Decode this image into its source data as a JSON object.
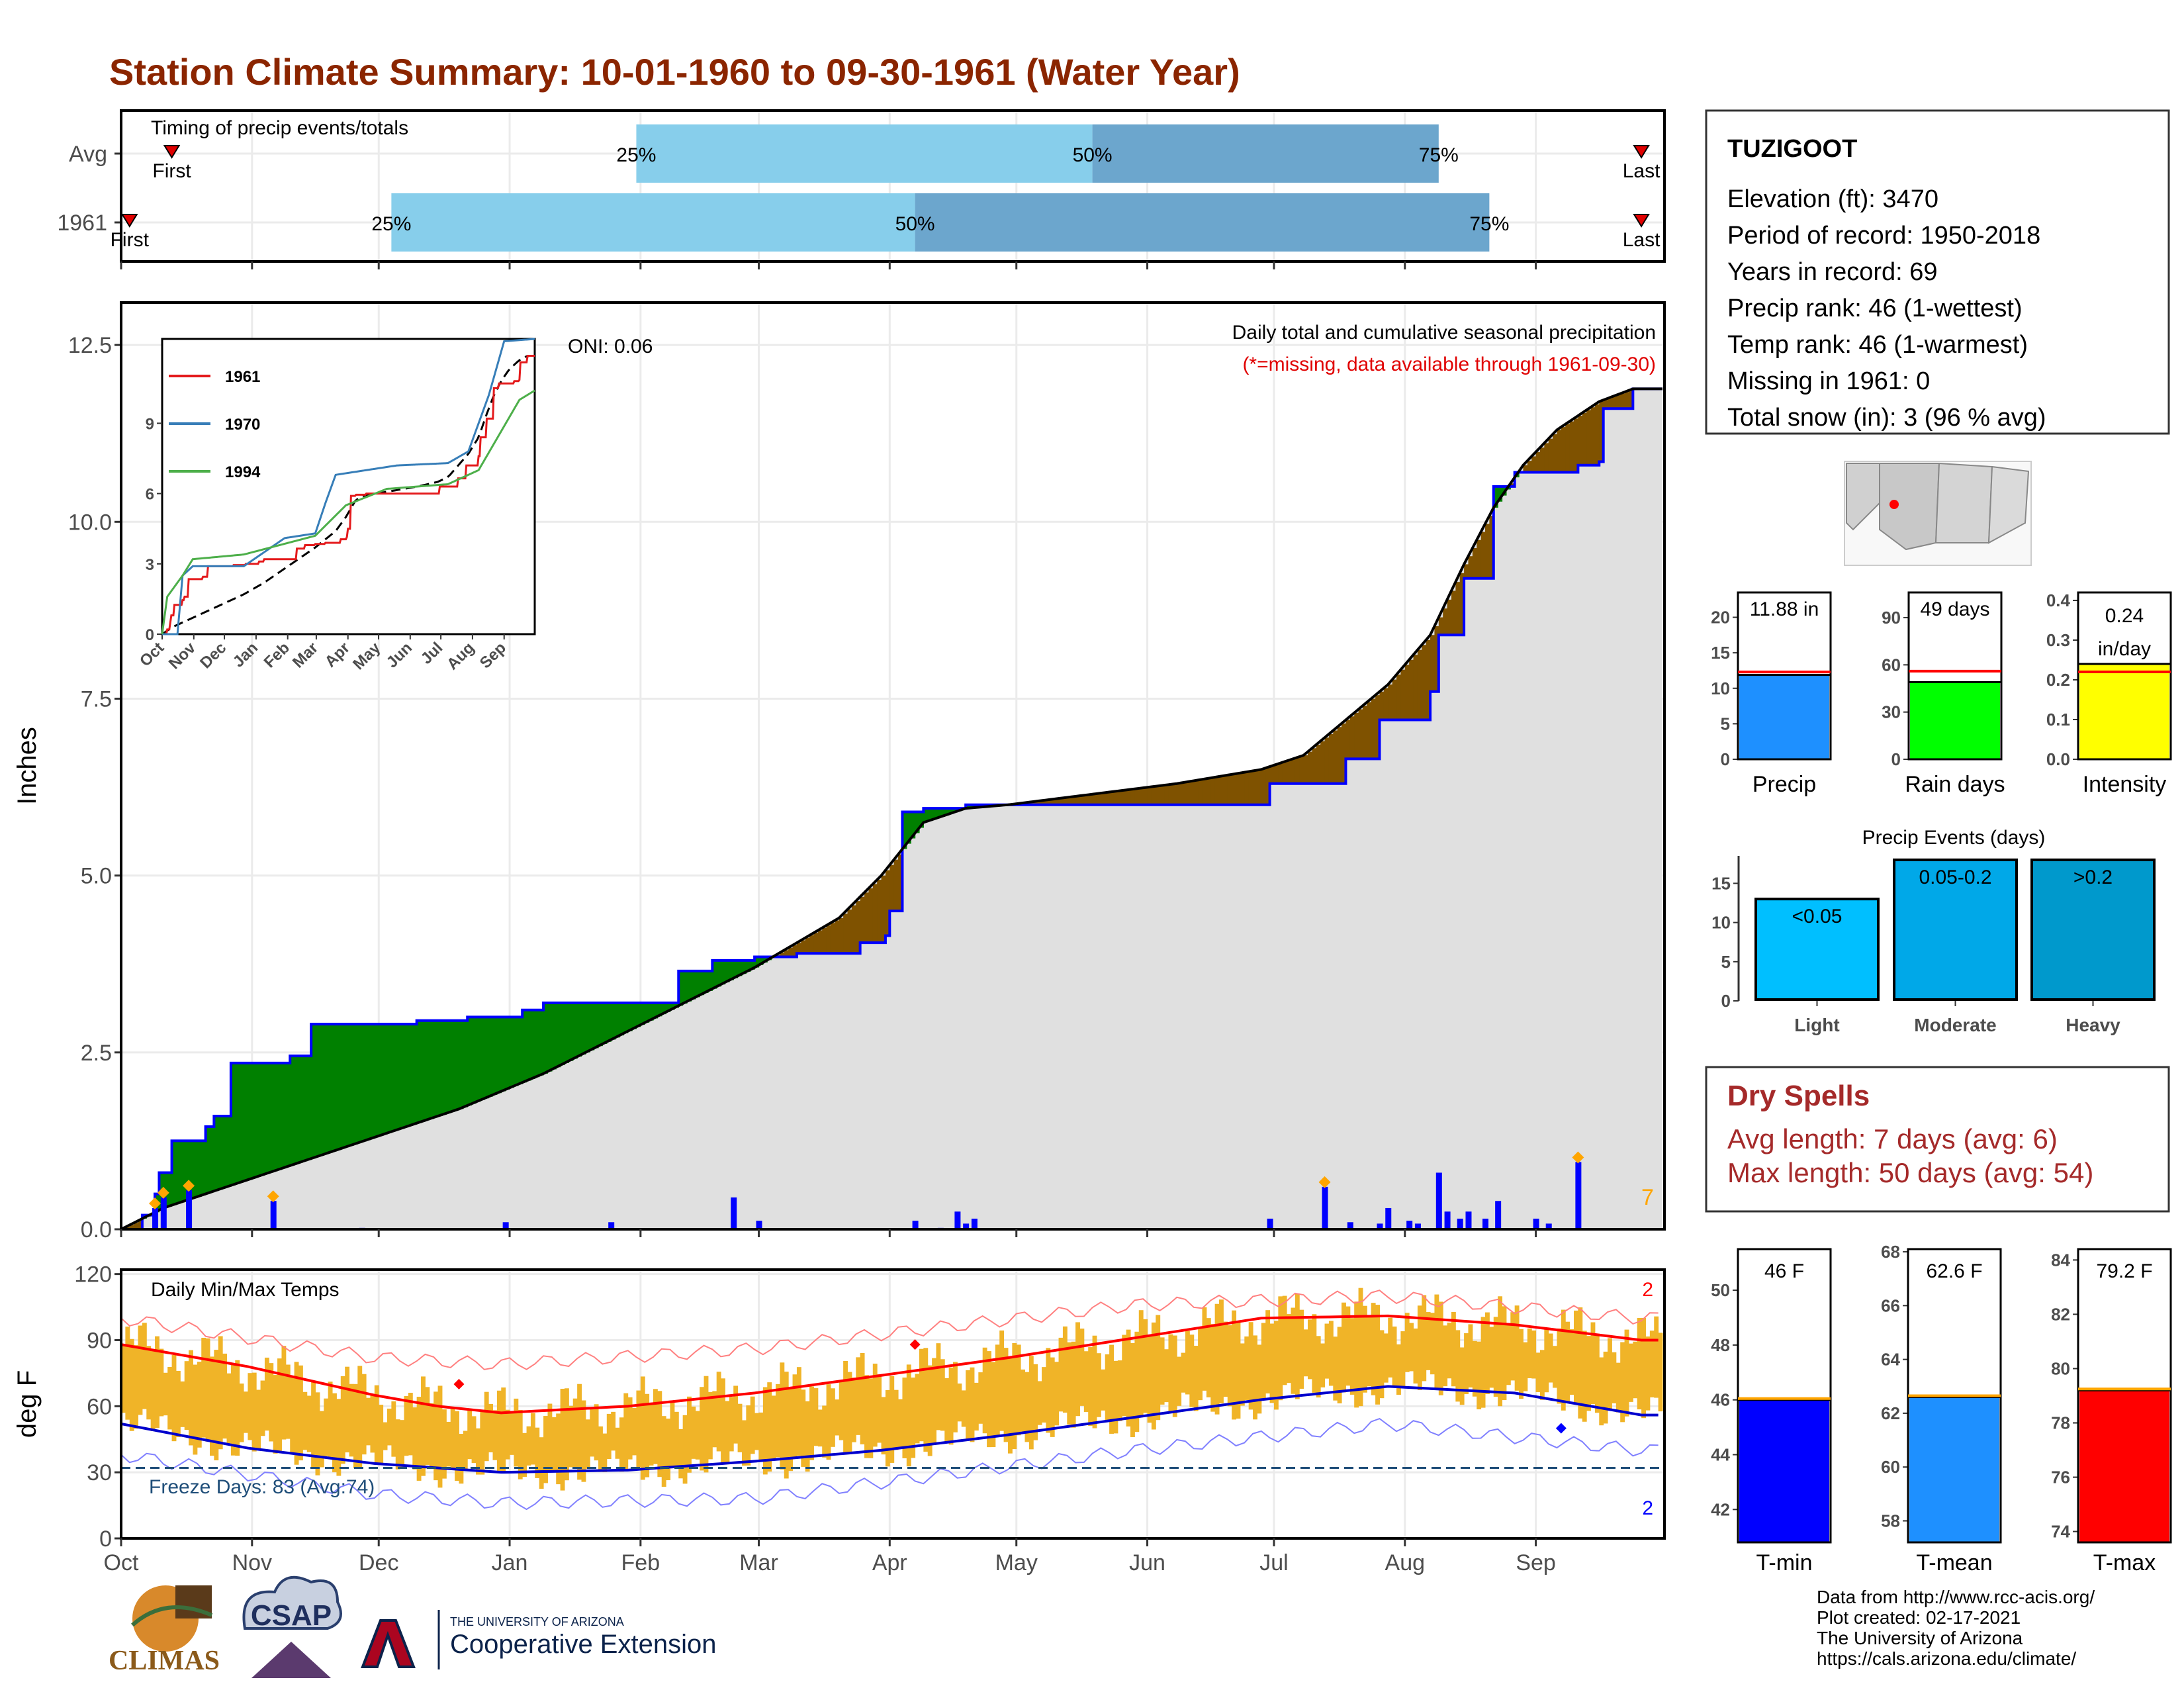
{
  "title": "Station Climate Summary: 10-01-1960 to 09-30-1961 (Water Year)",
  "timing": {
    "label": "Timing of precip events/totals",
    "rows": [
      {
        "name": "Avg",
        "first_label": "First",
        "last_label": "Last",
        "q25": "25%",
        "q50": "50%",
        "q75": "75%",
        "q25_day": 122,
        "q50_day": 230,
        "q75_day": 312,
        "first_day": 12,
        "last_day": 360
      },
      {
        "name": "1961",
        "first_label": "First",
        "last_label": "Last",
        "q25": "25%",
        "q50": "50%",
        "q75": "75%",
        "q25_day": 64,
        "q50_day": 188,
        "q75_day": 324,
        "first_day": 2,
        "last_day": 360
      }
    ]
  },
  "main_panel": {
    "ylabel": "Inches",
    "note1": "Daily total and cumulative seasonal precipitation",
    "note2": "(*=missing, data available through 1961-09-30)",
    "oni": "ONI: 0.06",
    "count_label": "7",
    "yticks": [
      "0.0",
      "2.5",
      "5.0",
      "7.5",
      "10.0",
      "12.5"
    ],
    "ylim": [
      0,
      13.1
    ],
    "colors": {
      "above": "#008000",
      "below": "#7f5200",
      "avg_fill": "#e0e0e0",
      "line": "#0000ff"
    }
  },
  "inset": {
    "yticks": [
      "0",
      "3",
      "6",
      "9"
    ],
    "xticks": [
      "Oct",
      "Nov",
      "Dec",
      "Jan",
      "Feb",
      "Mar",
      "Apr",
      "May",
      "Jun",
      "Jul",
      "Aug",
      "Sep"
    ],
    "legend": [
      {
        "name": "1961",
        "color": "#e41a1c"
      },
      {
        "name": "1970",
        "color": "#377eb8"
      },
      {
        "name": "1994",
        "color": "#4daf4a"
      }
    ]
  },
  "temp_panel": {
    "ylabel": "deg F",
    "label": "Daily Min/Max Temps",
    "freeze": "Freeze Days: 83 (Avg:74)",
    "max_count": "2",
    "min_count": "2",
    "yticks": [
      "0",
      "30",
      "60",
      "90",
      "120"
    ],
    "ylim": [
      0,
      122
    ]
  },
  "months": [
    "Oct",
    "Nov",
    "Dec",
    "Jan",
    "Feb",
    "Mar",
    "Apr",
    "May",
    "Jun",
    "Jul",
    "Aug",
    "Sep"
  ],
  "station": {
    "name": "TUZIGOOT",
    "lines": [
      "Elevation (ft): 3470",
      "Period of record: 1950-2018",
      "Years in record: 69",
      "Precip rank: 46 (1-wettest)",
      "Temp rank: 46 (1-warmest)",
      "Missing in 1961: 0",
      "Total snow (in): 3 (96 % avg)"
    ]
  },
  "summary_bars": [
    {
      "label": "Precip",
      "value_label": "11.88 in",
      "value": 11.88,
      "avg": 12.3,
      "ymax": 23.5,
      "yticks": [
        "0",
        "5",
        "10",
        "15",
        "20"
      ],
      "tickvals": [
        0,
        5,
        10,
        15,
        20
      ],
      "color": "#1e90ff"
    },
    {
      "label": "Rain days",
      "value_label": "49 days",
      "value": 49,
      "avg": 56,
      "ymax": 106,
      "yticks": [
        "0",
        "30",
        "60",
        "90"
      ],
      "tickvals": [
        0,
        30,
        60,
        90
      ],
      "color": "#00ff00"
    },
    {
      "label": "Intensity",
      "value_label": "0.24 in/day",
      "value": 0.24,
      "avg": 0.22,
      "ymax": 0.42,
      "yticks": [
        "0.0",
        "0.1",
        "0.2",
        "0.3",
        "0.4"
      ],
      "tickvals": [
        0,
        0.1,
        0.2,
        0.3,
        0.4
      ],
      "color": "#ffff00"
    }
  ],
  "precip_events": {
    "title": "Precip Events (days)",
    "yticks": [
      "0",
      "5",
      "10",
      "15"
    ],
    "tickvals": [
      0,
      5,
      10,
      15
    ],
    "ymax": 18.5,
    "bars": [
      {
        "label": "Light",
        "value_label": "<0.05",
        "value": 13,
        "color": "#00bfff"
      },
      {
        "label": "Moderate",
        "value_label": "0.05-0.2",
        "value": 18,
        "color": "#00a8e8"
      },
      {
        "label": "Heavy",
        "value_label": ">0.2",
        "value": 18,
        "color": "#0099cc"
      }
    ]
  },
  "dry_spells": {
    "title": "Dry Spells",
    "lines": [
      "Avg length: 7 days (avg: 6)",
      "Max length: 50 days (avg: 54)"
    ]
  },
  "temp_bars": [
    {
      "label": "T-min",
      "value_label": "46 F",
      "value": 46,
      "ymin": 40.8,
      "ymax": 51.5,
      "yticks": [
        "42",
        "44",
        "46",
        "48",
        "50"
      ],
      "tickvals": [
        42,
        44,
        46,
        48,
        50
      ],
      "color": "#0000ff"
    },
    {
      "label": "T-mean",
      "value_label": "62.6 F",
      "value": 62.6,
      "ymin": 57.2,
      "ymax": 68.1,
      "yticks": [
        "58",
        "60",
        "62",
        "64",
        "66",
        "68"
      ],
      "tickvals": [
        58,
        60,
        62,
        64,
        66,
        68
      ],
      "color": "#1e90ff"
    },
    {
      "label": "T-max",
      "value_label": "79.2 F",
      "value": 79.2,
      "ymin": 73.6,
      "ymax": 84.4,
      "yticks": [
        "74",
        "76",
        "78",
        "80",
        "82",
        "84"
      ],
      "tickvals": [
        74,
        76,
        78,
        80,
        82,
        84
      ],
      "color": "#ff0000"
    }
  ],
  "credits": [
    "Data from http://www.rcc-acis.org/",
    "Plot created: 02-17-2021",
    "The University of Arizona",
    "https://cals.arizona.edu/climate/"
  ],
  "logos": {
    "climas": "CLIMAS",
    "csap": "CSAP",
    "ua_small": "THE UNIVERSITY OF ARIZONA",
    "coop": "Cooperative Extension"
  },
  "chart_data": [
    {
      "type": "area",
      "title": "Daily total and cumulative seasonal precipitation",
      "ylabel": "Inches",
      "x": [
        "Oct",
        "Nov",
        "Dec",
        "Jan",
        "Feb",
        "Mar",
        "Apr",
        "May",
        "Jun",
        "Jul",
        "Aug",
        "Sep"
      ],
      "ylim": [
        0,
        13.1
      ],
      "series": [
        {
          "name": "1961",
          "values_by_day": [
            [
              0,
              0
            ],
            [
              5,
              0.2
            ],
            [
              8,
              0.5
            ],
            [
              9,
              0.8
            ],
            [
              12,
              1.25
            ],
            [
              20,
              1.45
            ],
            [
              22,
              1.6
            ],
            [
              26,
              2.35
            ],
            [
              37,
              2.35
            ],
            [
              40,
              2.45
            ],
            [
              45,
              2.9
            ],
            [
              62,
              2.9
            ],
            [
              70,
              2.95
            ],
            [
              82,
              3.0
            ],
            [
              95,
              3.1
            ],
            [
              100,
              3.2
            ],
            [
              120,
              3.2
            ],
            [
              130,
              3.2
            ],
            [
              132,
              3.65
            ],
            [
              140,
              3.8
            ],
            [
              150,
              3.85
            ],
            [
              160,
              3.9
            ],
            [
              170,
              3.9
            ],
            [
              175,
              4.05
            ],
            [
              181,
              4.15
            ],
            [
              182,
              4.5
            ],
            [
              185,
              5.9
            ],
            [
              190,
              5.95
            ],
            [
              200,
              6.0
            ],
            [
              225,
              6.0
            ],
            [
              270,
              6.0
            ],
            [
              272,
              6.3
            ],
            [
              285,
              6.3
            ],
            [
              290,
              6.65
            ],
            [
              298,
              7.2
            ],
            [
              310,
              7.6
            ],
            [
              312,
              8.4
            ],
            [
              318,
              9.2
            ],
            [
              325,
              10.5
            ],
            [
              330,
              10.7
            ],
            [
              345,
              10.8
            ],
            [
              350,
              10.85
            ],
            [
              351,
              11.6
            ],
            [
              358,
              11.88
            ]
          ]
        },
        {
          "name": "Avg",
          "values_by_day": [
            [
              0,
              0
            ],
            [
              10,
              0.3
            ],
            [
              20,
              0.5
            ],
            [
              40,
              0.9
            ],
            [
              60,
              1.3
            ],
            [
              80,
              1.7
            ],
            [
              100,
              2.2
            ],
            [
              110,
              2.5
            ],
            [
              120,
              2.8
            ],
            [
              130,
              3.1
            ],
            [
              140,
              3.4
            ],
            [
              150,
              3.7
            ],
            [
              160,
              4.05
            ],
            [
              170,
              4.4
            ],
            [
              180,
              5.0
            ],
            [
              190,
              5.75
            ],
            [
              200,
              5.95
            ],
            [
              210,
              6.0
            ],
            [
              230,
              6.15
            ],
            [
              250,
              6.3
            ],
            [
              270,
              6.5
            ],
            [
              280,
              6.7
            ],
            [
              290,
              7.2
            ],
            [
              300,
              7.7
            ],
            [
              310,
              8.4
            ],
            [
              318,
              9.4
            ],
            [
              325,
              10.2
            ],
            [
              332,
              10.8
            ],
            [
              340,
              11.3
            ],
            [
              350,
              11.7
            ],
            [
              358,
              11.88
            ]
          ]
        }
      ],
      "daily_precip_by_day": [
        [
          8,
          0.3
        ],
        [
          10,
          0.45
        ],
        [
          16,
          0.55
        ],
        [
          36,
          0.4
        ],
        [
          57,
          0.02
        ],
        [
          91,
          0.1
        ],
        [
          116,
          0.1
        ],
        [
          145,
          0.45
        ],
        [
          151,
          0.12
        ],
        [
          188,
          0.12
        ],
        [
          194,
          0.02
        ],
        [
          198,
          0.25
        ],
        [
          200,
          0.08
        ],
        [
          202,
          0.15
        ],
        [
          272,
          0.15
        ],
        [
          285,
          0.6
        ],
        [
          291,
          0.1
        ],
        [
          298,
          0.08
        ],
        [
          300,
          0.3
        ],
        [
          305,
          0.12
        ],
        [
          307,
          0.08
        ],
        [
          312,
          0.8
        ],
        [
          314,
          0.25
        ],
        [
          317,
          0.15
        ],
        [
          319,
          0.25
        ],
        [
          323,
          0.15
        ],
        [
          326,
          0.4
        ],
        [
          335,
          0.15
        ],
        [
          338,
          0.08
        ],
        [
          345,
          0.95
        ]
      ]
    },
    {
      "type": "line",
      "title": "Daily Min/Max Temps",
      "ylabel": "deg F",
      "ylim": [
        0,
        122
      ],
      "series": [
        {
          "name": "Avg max",
          "values_by_day": [
            [
              0,
              88
            ],
            [
              30,
              78
            ],
            [
              60,
              65
            ],
            [
              75,
              60
            ],
            [
              90,
              57
            ],
            [
              120,
              60
            ],
            [
              150,
              66
            ],
            [
              180,
              74
            ],
            [
              210,
              82
            ],
            [
              240,
              91
            ],
            [
              270,
              100
            ],
            [
              300,
              101
            ],
            [
              330,
              97
            ],
            [
              360,
              90
            ]
          ]
        },
        {
          "name": "Avg min",
          "values_by_day": [
            [
              0,
              52
            ],
            [
              30,
              41
            ],
            [
              60,
              34
            ],
            [
              90,
              30
            ],
            [
              120,
              31
            ],
            [
              150,
              35
            ],
            [
              180,
              40
            ],
            [
              210,
              47
            ],
            [
              240,
              55
            ],
            [
              270,
              63
            ],
            [
              300,
              69
            ],
            [
              330,
              66
            ],
            [
              360,
              56
            ]
          ]
        },
        {
          "name": "Record high",
          "values_by_day": [
            [
              0,
              100
            ],
            [
              60,
              82
            ],
            [
              90,
              79
            ],
            [
              150,
              86
            ],
            [
              240,
              106
            ],
            [
              300,
              110
            ],
            [
              360,
              100
            ]
          ]
        },
        {
          "name": "Record low",
          "values_by_day": [
            [
              0,
              38
            ],
            [
              60,
              20
            ],
            [
              90,
              16
            ],
            [
              150,
              18
            ],
            [
              240,
              40
            ],
            [
              300,
              52
            ],
            [
              360,
              40
            ]
          ]
        }
      ],
      "freeze_line": 32
    },
    {
      "type": "bar",
      "categories": [
        "Precip",
        "Rain days",
        "Intensity"
      ],
      "values": [
        11.88,
        49,
        0.24
      ]
    },
    {
      "type": "bar",
      "title": "Precip Events (days)",
      "categories": [
        "Light",
        "Moderate",
        "Heavy"
      ],
      "values": [
        13,
        18,
        18
      ]
    },
    {
      "type": "bar",
      "categories": [
        "T-min",
        "T-mean",
        "T-max"
      ],
      "values": [
        46,
        62.6,
        79.2
      ]
    }
  ]
}
